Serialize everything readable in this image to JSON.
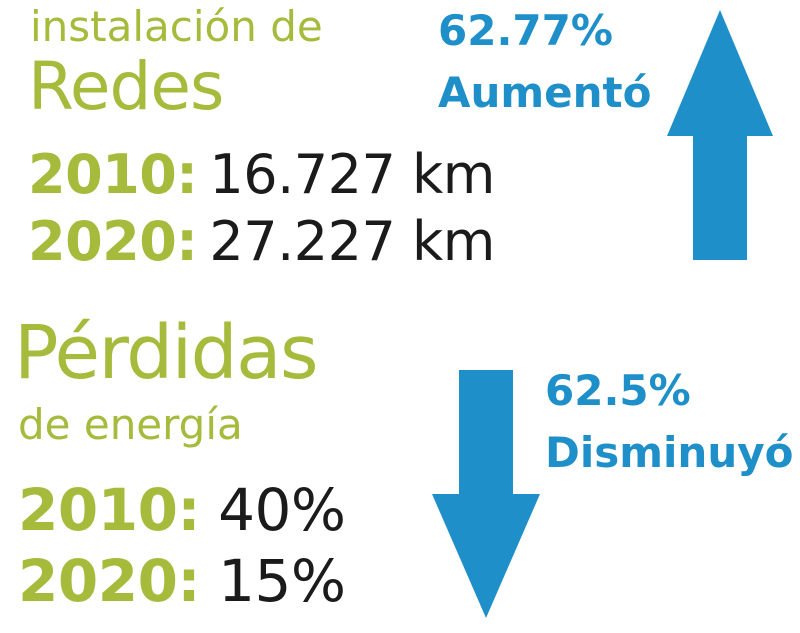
{
  "colors": {
    "green": "#a6ba3b",
    "blue": "#1e8fc8",
    "text": "#1b1b1b"
  },
  "redes": {
    "subtitle": "instalación de",
    "title": "Redes",
    "rows": [
      {
        "year": "2010:",
        "value": "16.727 km"
      },
      {
        "year": "2020:",
        "value": "27.227 km"
      }
    ],
    "change": {
      "percent": "62.77%",
      "label": "Aumentó",
      "direction": "up",
      "icon": "arrow-up-icon"
    }
  },
  "perdidas": {
    "title": "Pérdidas",
    "subtitle": "de energía",
    "rows": [
      {
        "year": "2010:",
        "value": "40%"
      },
      {
        "year": "2020:",
        "value": "15%"
      }
    ],
    "change": {
      "percent": "62.5%",
      "label": "Disminuyó",
      "direction": "down",
      "icon": "arrow-down-icon"
    }
  }
}
